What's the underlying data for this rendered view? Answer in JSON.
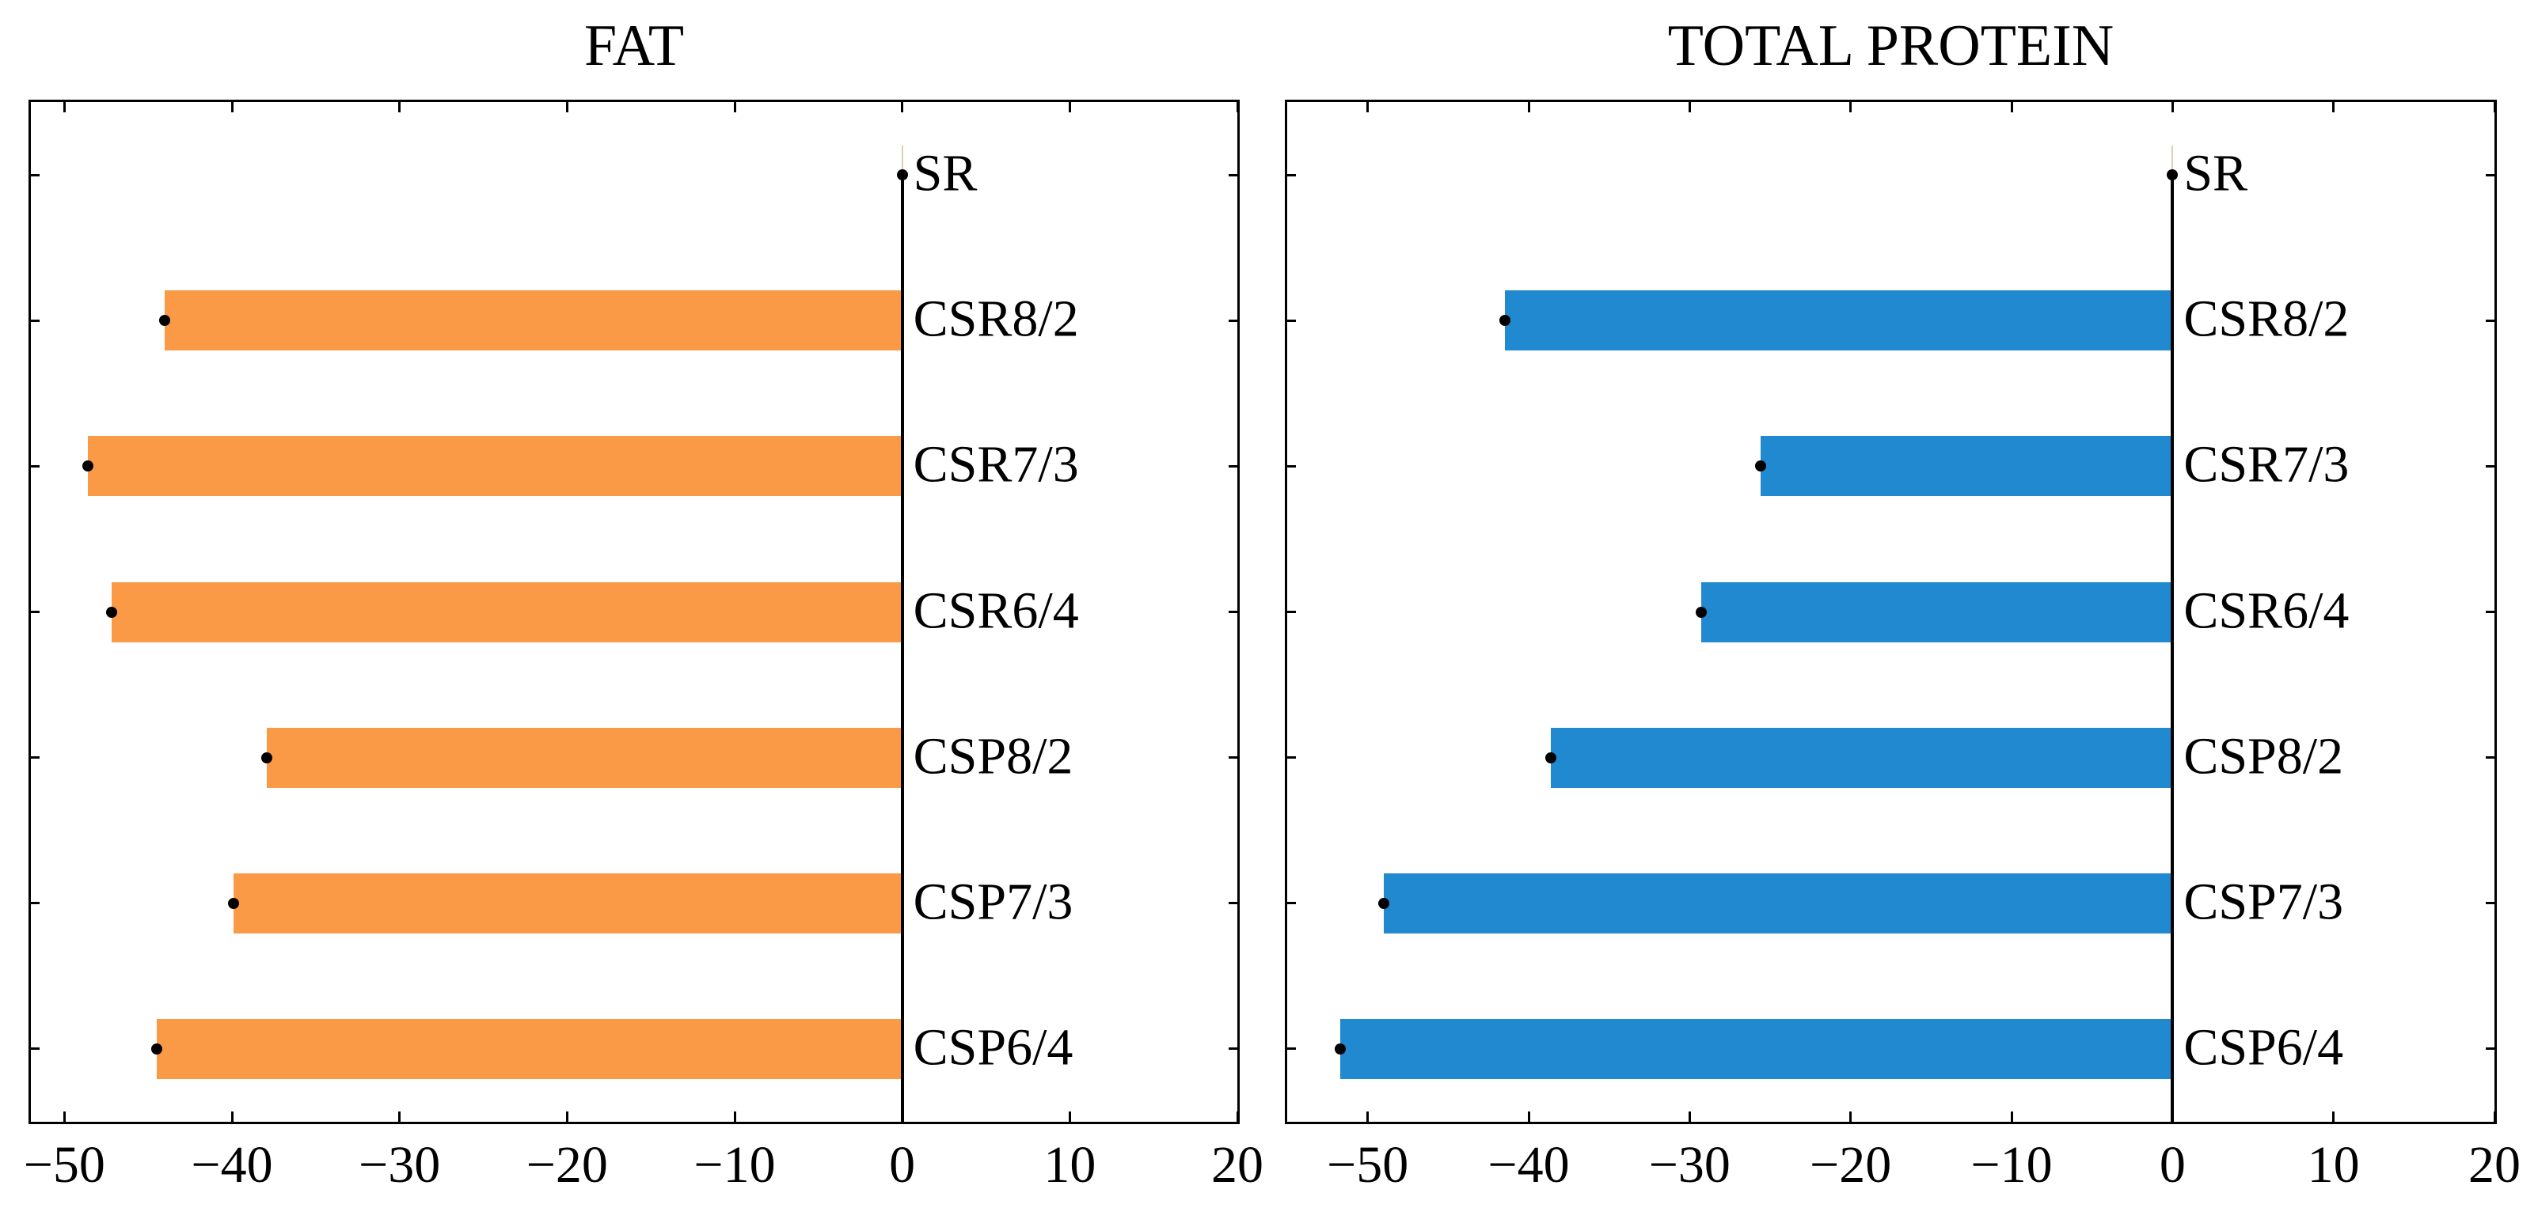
{
  "figure": {
    "background": "#ffffff",
    "text_color": "#000000"
  },
  "chart_data": [
    {
      "type": "bar",
      "orientation": "horizontal",
      "title": "FAT",
      "categories": [
        "SR",
        "CSR8/2",
        "CSR7/3",
        "CSR6/4",
        "CSP8/2",
        "CSP7/3",
        "CSP6/4"
      ],
      "values": [
        0,
        -44.0,
        -48.6,
        -47.2,
        -37.9,
        -39.9,
        -44.5
      ],
      "bar_color": "#FA9A47",
      "marker_color": "#000000",
      "baseline": 0,
      "xlim": [
        -52,
        20
      ],
      "xticks": [
        -50,
        -40,
        -30,
        -20,
        -10,
        0,
        10,
        20
      ],
      "xtick_labels": [
        "−50",
        "−40",
        "−30",
        "−20",
        "−10",
        "0",
        "10",
        "20"
      ],
      "grid": false,
      "legend": "none"
    },
    {
      "type": "bar",
      "orientation": "horizontal",
      "title": "TOTAL PROTEIN",
      "categories": [
        "SR",
        "CSR8/2",
        "CSR7/3",
        "CSR6/4",
        "CSP8/2",
        "CSP7/3",
        "CSP6/4"
      ],
      "values": [
        0,
        -41.5,
        -25.6,
        -29.3,
        -38.6,
        -49.0,
        -51.7
      ],
      "bar_color": "#2189D0",
      "marker_color": "#000000",
      "baseline": 0,
      "xlim": [
        -55,
        20
      ],
      "xticks": [
        -50,
        -40,
        -30,
        -20,
        -10,
        0,
        10,
        20
      ],
      "xtick_labels": [
        "−50",
        "−40",
        "−30",
        "−20",
        "−10",
        "0",
        "10",
        "20"
      ],
      "grid": false,
      "legend": "none"
    }
  ]
}
